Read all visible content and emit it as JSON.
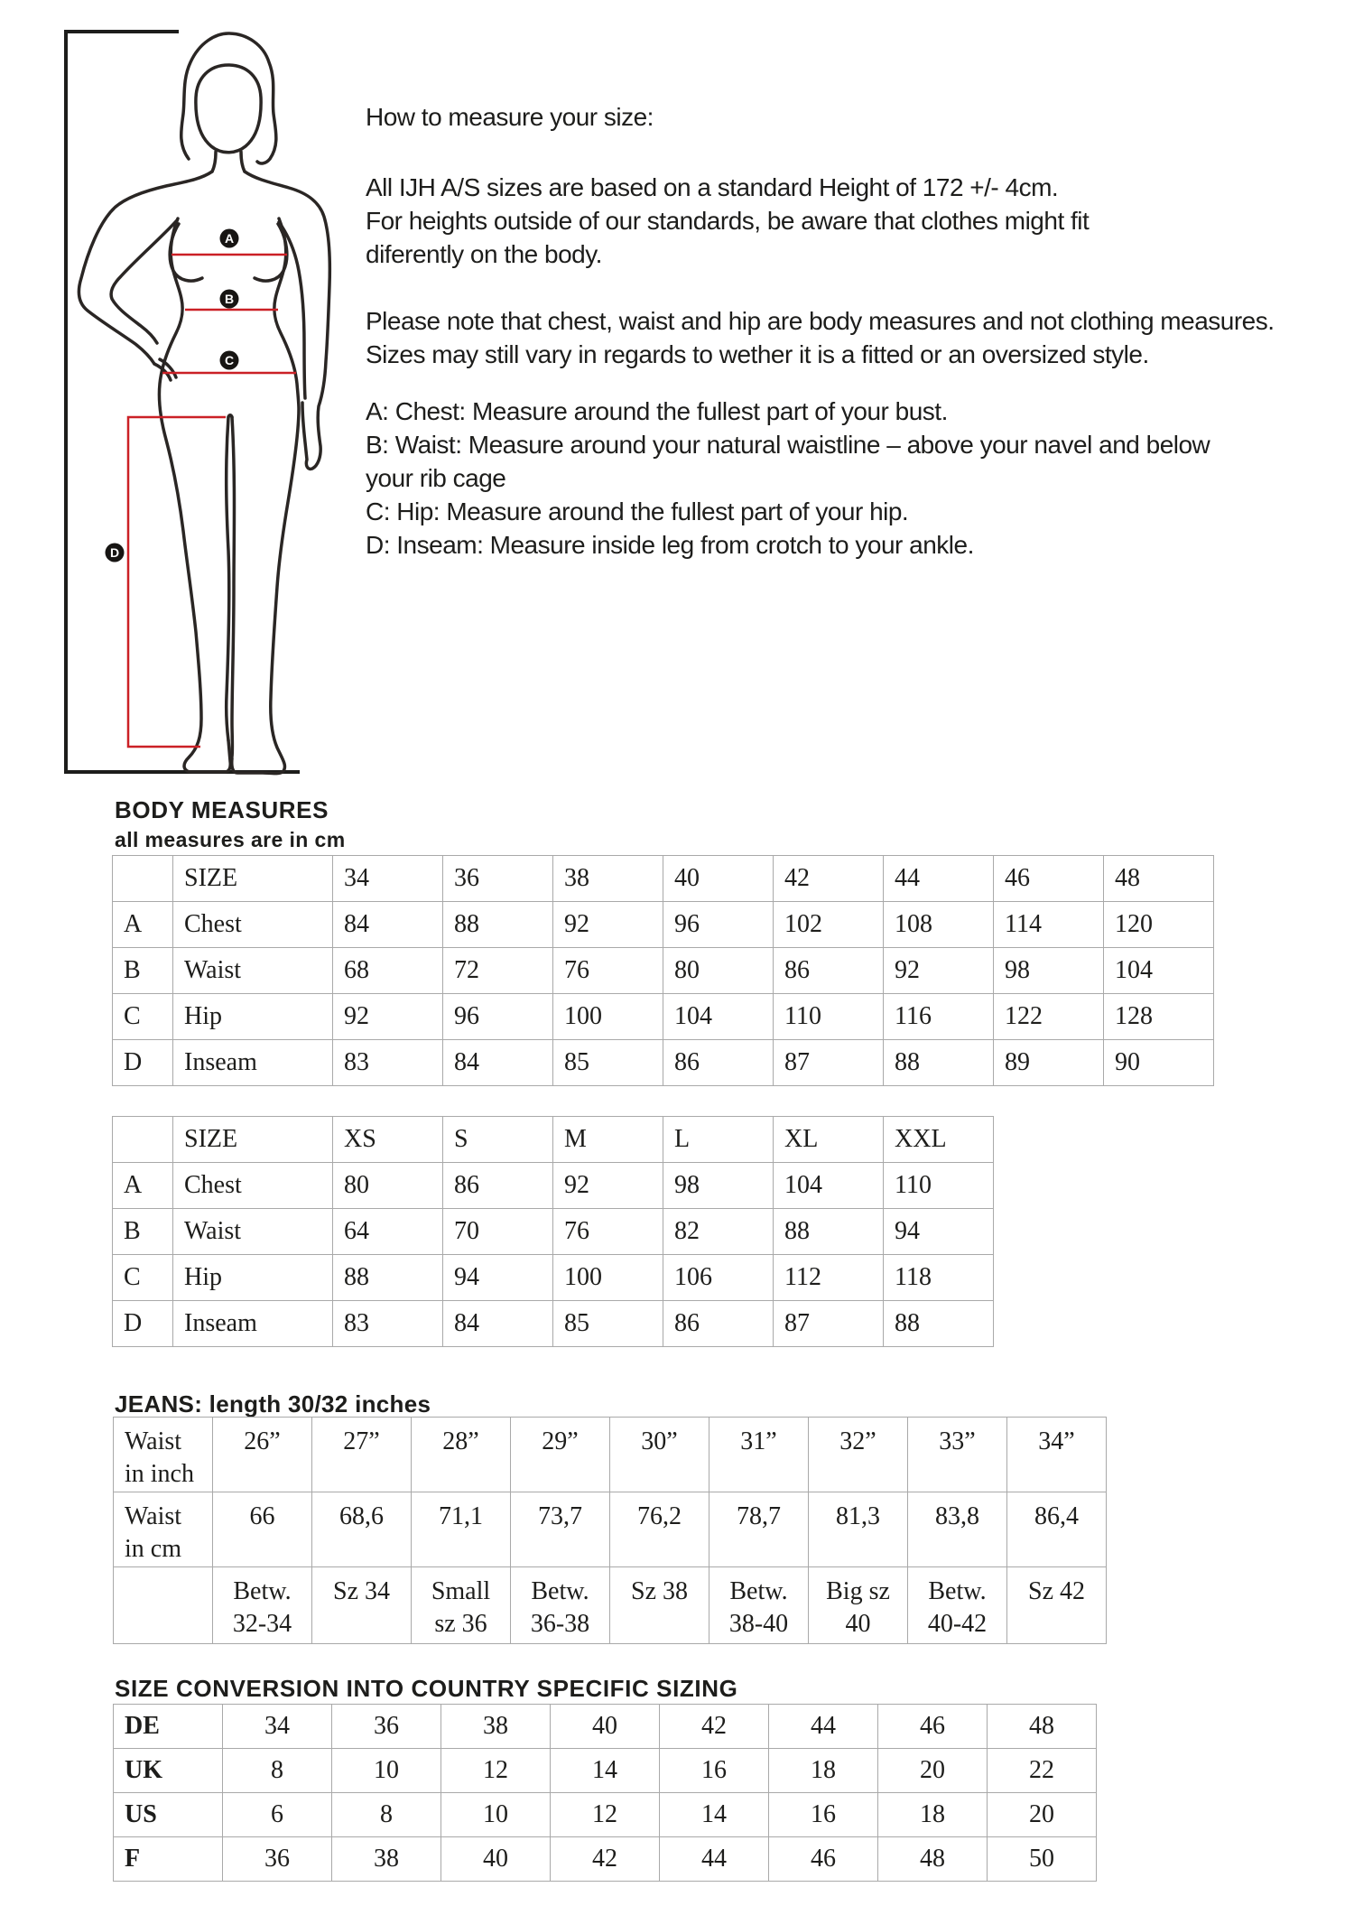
{
  "colors": {
    "accent_red": "#cb2026",
    "ink": "#1d1d1b",
    "table_border": "#a9a9a9"
  },
  "figure": {
    "markers": {
      "a": "A",
      "b": "B",
      "c": "C",
      "d": "D"
    }
  },
  "intro": {
    "title": "How to measure your size:",
    "para1": "All IJH A/S sizes are based on a standard Height of 172 +/- 4cm.\nFor heights outside of our standards, be aware that clothes might fit\ndiferently on the body.",
    "para2": "Please note that chest, waist and hip are body measures and not clothing measures.\nSizes may still vary in regards to wether it is a fitted or an oversized style.",
    "para3": "A: Chest: Measure around the fullest part of your bust.\nB: Waist: Measure around your natural waistline – above your navel and below\nyour rib cage\nC: Hip: Measure around the fullest part of your hip.\nD: Inseam: Measure inside leg from crotch to your ankle."
  },
  "body_measures": {
    "heading": "BODY MEASURES",
    "subheading": "all measures are in cm",
    "table_numeric": {
      "rows": [
        [
          "",
          "SIZE",
          "34",
          "36",
          "38",
          "40",
          "42",
          "44",
          "46",
          "48"
        ],
        [
          "A",
          "Chest",
          "84",
          "88",
          "92",
          "96",
          "102",
          "108",
          "114",
          "120"
        ],
        [
          "B",
          "Waist",
          "68",
          "72",
          "76",
          "80",
          "86",
          "92",
          "98",
          "104"
        ],
        [
          "C",
          "Hip",
          "92",
          "96",
          "100",
          "104",
          "110",
          "116",
          "122",
          "128"
        ],
        [
          "D",
          "Inseam",
          "83",
          "84",
          "85",
          "86",
          "87",
          "88",
          "89",
          "90"
        ]
      ]
    },
    "table_alpha": {
      "rows": [
        [
          "",
          "SIZE",
          "XS",
          "S",
          "M",
          "L",
          "XL",
          "XXL"
        ],
        [
          "A",
          "Chest",
          "80",
          "86",
          "92",
          "98",
          "104",
          "110"
        ],
        [
          "B",
          "Waist",
          "64",
          "70",
          "76",
          "82",
          "88",
          "94"
        ],
        [
          "C",
          "Hip",
          "88",
          "94",
          "100",
          "106",
          "112",
          "118"
        ],
        [
          "D",
          "Inseam",
          "83",
          "84",
          "85",
          "86",
          "87",
          "88"
        ]
      ]
    }
  },
  "jeans": {
    "heading": "JEANS:  length 30/32 inches",
    "table": {
      "rows": [
        [
          "Waist\nin inch",
          "26”",
          "27”",
          "28”",
          "29”",
          "30”",
          "31”",
          "32”",
          "33”",
          "34”"
        ],
        [
          "Waist\nin cm",
          "66",
          "68,6",
          "71,1",
          "73,7",
          "76,2",
          "78,7",
          "81,3",
          "83,8",
          "86,4"
        ],
        [
          "",
          "Betw.\n32-34",
          "Sz 34",
          "Small\nsz 36",
          "Betw.\n36-38",
          "Sz 38",
          "Betw.\n38-40",
          "Big sz\n40",
          "Betw.\n40-42",
          "Sz 42"
        ]
      ]
    }
  },
  "conversion": {
    "heading": "SIZE CONVERSION INTO COUNTRY SPECIFIC SIZING",
    "table": {
      "rows": [
        [
          "DE",
          "34",
          "36",
          "38",
          "40",
          "42",
          "44",
          "46",
          "48"
        ],
        [
          "UK",
          "8",
          "10",
          "12",
          "14",
          "16",
          "18",
          "20",
          "22"
        ],
        [
          "US",
          "6",
          "8",
          "10",
          "12",
          "14",
          "16",
          "18",
          "20"
        ],
        [
          "F",
          "36",
          "38",
          "40",
          "42",
          "44",
          "46",
          "48",
          "50"
        ]
      ]
    }
  }
}
